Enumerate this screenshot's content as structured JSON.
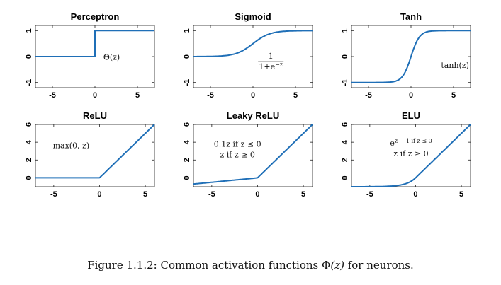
{
  "caption": {
    "prefix": "Figure 1.1.2:  Common activation functions ",
    "phi": "Φ",
    "arg": "(z)",
    "suffix": " for neurons."
  },
  "chart_data": [
    {
      "type": "line",
      "title": "Perceptron",
      "xlabel": "",
      "ylabel": "",
      "xlim": [
        -7,
        7
      ],
      "ylim": [
        -1.2,
        1.2
      ],
      "xticks": [
        -5,
        0,
        5
      ],
      "yticks": [
        -1,
        0,
        1
      ],
      "function": "step",
      "annotation": [
        "Θ(z)"
      ],
      "series": [
        {
          "x": [
            -7,
            0,
            0,
            7
          ],
          "y": [
            0,
            0,
            1,
            1
          ]
        }
      ]
    },
    {
      "type": "line",
      "title": "Sigmoid",
      "xlabel": "",
      "ylabel": "",
      "xlim": [
        -7,
        7
      ],
      "ylim": [
        -1.2,
        1.2
      ],
      "xticks": [
        -5,
        0,
        5
      ],
      "yticks": [
        -1,
        0,
        1
      ],
      "function": "sigmoid",
      "annotation": [
        "1",
        "1+e^−z"
      ],
      "series": [
        {
          "x": [
            -7,
            -5,
            -2.5,
            0,
            2.5,
            5,
            7
          ],
          "y": [
            0.0009,
            0.007,
            0.076,
            0.5,
            0.924,
            0.993,
            0.9991
          ]
        }
      ]
    },
    {
      "type": "line",
      "title": "Tanh",
      "xlabel": "",
      "ylabel": "",
      "xlim": [
        -7,
        7
      ],
      "ylim": [
        -1.2,
        1.2
      ],
      "xticks": [
        -5,
        0,
        5
      ],
      "yticks": [
        -1,
        0,
        1
      ],
      "function": "tanh",
      "annotation": [
        "tanh(z)"
      ],
      "series": [
        {
          "x": [
            -7,
            -2.5,
            -1,
            0,
            1,
            2.5,
            7
          ],
          "y": [
            -1,
            -0.987,
            -0.762,
            0,
            0.762,
            0.987,
            1
          ]
        }
      ]
    },
    {
      "type": "line",
      "title": "ReLU",
      "xlabel": "",
      "ylabel": "",
      "xlim": [
        -7,
        6
      ],
      "ylim": [
        -1,
        6
      ],
      "xticks": [
        -5,
        0,
        5
      ],
      "yticks": [
        0,
        2,
        4,
        6
      ],
      "function": "relu",
      "annotation": [
        "max(0, z)"
      ],
      "series": [
        {
          "x": [
            -7,
            0,
            6
          ],
          "y": [
            0,
            0,
            6
          ]
        }
      ]
    },
    {
      "type": "line",
      "title": "Leaky ReLU",
      "xlabel": "",
      "ylabel": "",
      "xlim": [
        -7,
        6
      ],
      "ylim": [
        -1,
        6
      ],
      "xticks": [
        -5,
        0,
        5
      ],
      "yticks": [
        0,
        2,
        4,
        6
      ],
      "function": "leaky_relu",
      "annotation": [
        "0.1z if z ≤ 0",
        "z if z ≥ 0"
      ],
      "series": [
        {
          "x": [
            -7,
            0,
            6
          ],
          "y": [
            -0.7,
            0,
            6
          ]
        }
      ]
    },
    {
      "type": "line",
      "title": "ELU",
      "xlabel": "",
      "ylabel": "",
      "xlim": [
        -7,
        6
      ],
      "ylim": [
        -1,
        6
      ],
      "xticks": [
        -5,
        0,
        5
      ],
      "yticks": [
        0,
        2,
        4,
        6
      ],
      "function": "elu",
      "annotation": [
        "e^z − 1 if z ≤ 0",
        "z if z ≥ 0"
      ],
      "series": [
        {
          "x": [
            -7,
            -3,
            -1,
            0,
            6
          ],
          "y": [
            -0.999,
            -0.95,
            -0.632,
            0,
            6
          ]
        }
      ]
    }
  ]
}
